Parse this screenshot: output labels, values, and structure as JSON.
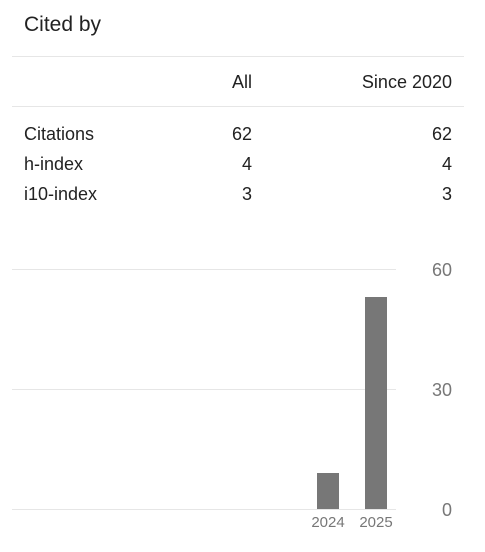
{
  "title": "Cited by",
  "table": {
    "headers": {
      "all": "All",
      "since": "Since 2020"
    },
    "rows": [
      {
        "label": "Citations",
        "all": "62",
        "since": "62"
      },
      {
        "label": "h-index",
        "all": "4",
        "since": "4"
      },
      {
        "label": "i10-index",
        "all": "3",
        "since": "3"
      }
    ]
  },
  "colors": {
    "bar": "#777777",
    "grid": "#e6e6e6",
    "text": "#222222",
    "axis_text": "#777777"
  },
  "chart_data": {
    "type": "bar",
    "categories": [
      "2024",
      "2025"
    ],
    "values": [
      9,
      53
    ],
    "ylim": [
      0,
      60
    ],
    "yticks": [
      0,
      30,
      60
    ],
    "grid": true
  }
}
